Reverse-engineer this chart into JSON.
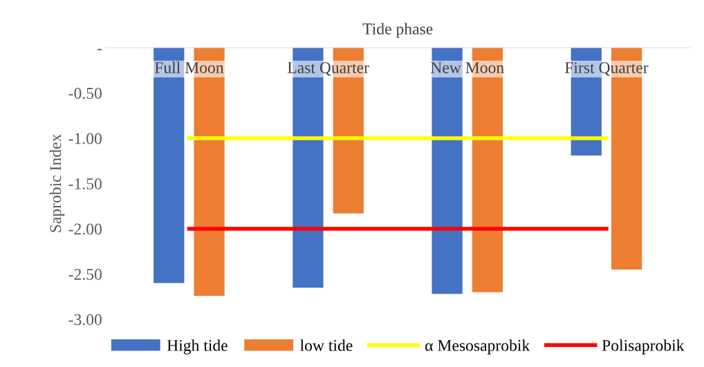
{
  "chart_data": {
    "type": "bar",
    "xlabel": "Tide phase",
    "ylabel": "Saprobic Index",
    "categories": [
      "Full Moon",
      "Last Quarter",
      "New Moon",
      "First Quarter"
    ],
    "series": [
      {
        "name": "High tide",
        "color": "#4472c4",
        "values": [
          -2.6,
          -2.65,
          -2.72,
          -1.19
        ]
      },
      {
        "name": "low tide",
        "color": "#ed7d31",
        "values": [
          -2.74,
          -1.83,
          -2.7,
          -2.45
        ]
      },
      {
        "name": "α Mesosaprobik",
        "type": "line",
        "color": "#ffff00",
        "values": [
          -1.0,
          -1.0,
          -1.0,
          -1.0
        ]
      },
      {
        "name": "Polisaprobik",
        "type": "line",
        "color": "#ff0000",
        "values": [
          -2.0,
          -2.0,
          -2.0,
          -2.0
        ]
      }
    ],
    "ylim": [
      -3.0,
      0
    ],
    "yticks": [
      {
        "value": 0,
        "label": "-"
      },
      {
        "value": -0.5,
        "label": "-0.50"
      },
      {
        "value": -1.0,
        "label": "-1.00"
      },
      {
        "value": -1.5,
        "label": "-1.50"
      },
      {
        "value": -2.0,
        "label": "-2.00"
      },
      {
        "value": -2.5,
        "label": "-2.50"
      },
      {
        "value": -3.0,
        "label": "-3.00"
      }
    ],
    "grid": false,
    "legend": "bottom"
  }
}
